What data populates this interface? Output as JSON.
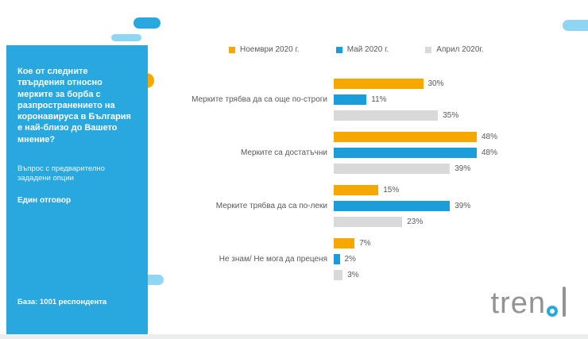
{
  "sidebar": {
    "question": "Кое от следните твърдения относно мерките за борба с разпространението на коронавируса в България е най-близо до Вашето мнение?",
    "note": "Въпрос с предварително зададени опции",
    "answer_type": "Един отговор",
    "base": "База: 1001 респондента"
  },
  "chart_data": {
    "type": "bar",
    "orientation": "horizontal",
    "categories": [
      "Мерките трябва да са още по-строги",
      "Мерките са достатъчни",
      "Мерките трябва да са по-леки",
      "Не знам/ Не мога да преценя"
    ],
    "series": [
      {
        "name": "Ноември 2020 г.",
        "color": "#f7a800",
        "values": [
          30,
          48,
          15,
          7
        ]
      },
      {
        "name": "Май 2020 г.",
        "color": "#1b9dd9",
        "values": [
          11,
          48,
          39,
          2
        ]
      },
      {
        "name": "Април 2020г.",
        "color": "#d9d9d9",
        "values": [
          35,
          39,
          23,
          3
        ]
      }
    ],
    "value_suffix": "%",
    "xlim": [
      0,
      55
    ],
    "legend_position": "top",
    "grid": false
  },
  "logo": {
    "text": "trend"
  },
  "colors": {
    "sidebar_bg": "#29a8e0",
    "accent_orange": "#f7a800",
    "accent_light_blue": "#8ed6f4",
    "text": "#595959"
  }
}
